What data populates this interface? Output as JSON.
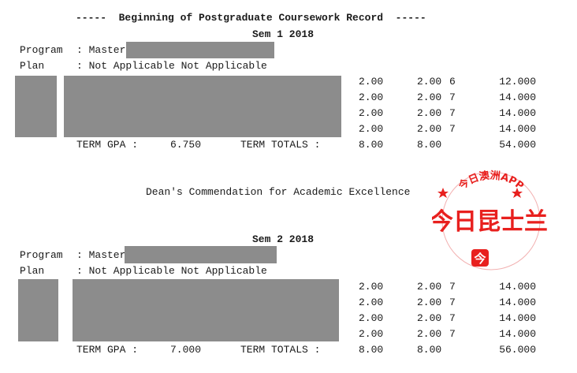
{
  "header": {
    "title": "-----  Beginning of Postgraduate Coursework Record  -----"
  },
  "watermark": {
    "arc_text": "今日澳洲APP",
    "main_text": "今日昆士兰",
    "color": "#e8201e"
  },
  "commendation": "Dean's Commendation for Academic Excellence",
  "semesters": [
    {
      "title": "Sem 1 2018",
      "program_label": "Program",
      "program_value": ": Master",
      "plan_label": "Plan",
      "plan_value": ": Not Applicable Not Applicable",
      "rows": [
        {
          "attempted": "2.00",
          "earned": "2.00",
          "grade": "6",
          "points": "12.000"
        },
        {
          "attempted": "2.00",
          "earned": "2.00",
          "grade": "7",
          "points": "14.000"
        },
        {
          "attempted": "2.00",
          "earned": "2.00",
          "grade": "7",
          "points": "14.000"
        },
        {
          "attempted": "2.00",
          "earned": "2.00",
          "grade": "7",
          "points": "14.000"
        }
      ],
      "gpa_label": "TERM GPA :",
      "gpa_value": "6.750",
      "totals_label": "TERM TOTALS :",
      "totals_attempted": "8.00",
      "totals_earned": "8.00",
      "totals_points": "54.000"
    },
    {
      "title": "Sem 2 2018",
      "program_label": "Program",
      "program_value": ": Master",
      "plan_label": "Plan",
      "plan_value": ": Not Applicable Not Applicable",
      "rows": [
        {
          "attempted": "2.00",
          "earned": "2.00",
          "grade": "7",
          "points": "14.000"
        },
        {
          "attempted": "2.00",
          "earned": "2.00",
          "grade": "7",
          "points": "14.000"
        },
        {
          "attempted": "2.00",
          "earned": "2.00",
          "grade": "7",
          "points": "14.000"
        },
        {
          "attempted": "2.00",
          "earned": "2.00",
          "grade": "7",
          "points": "14.000"
        }
      ],
      "gpa_label": "TERM GPA :",
      "gpa_value": "7.000",
      "totals_label": "TERM TOTALS :",
      "totals_attempted": "8.00",
      "totals_earned": "8.00",
      "totals_points": "56.000"
    }
  ]
}
